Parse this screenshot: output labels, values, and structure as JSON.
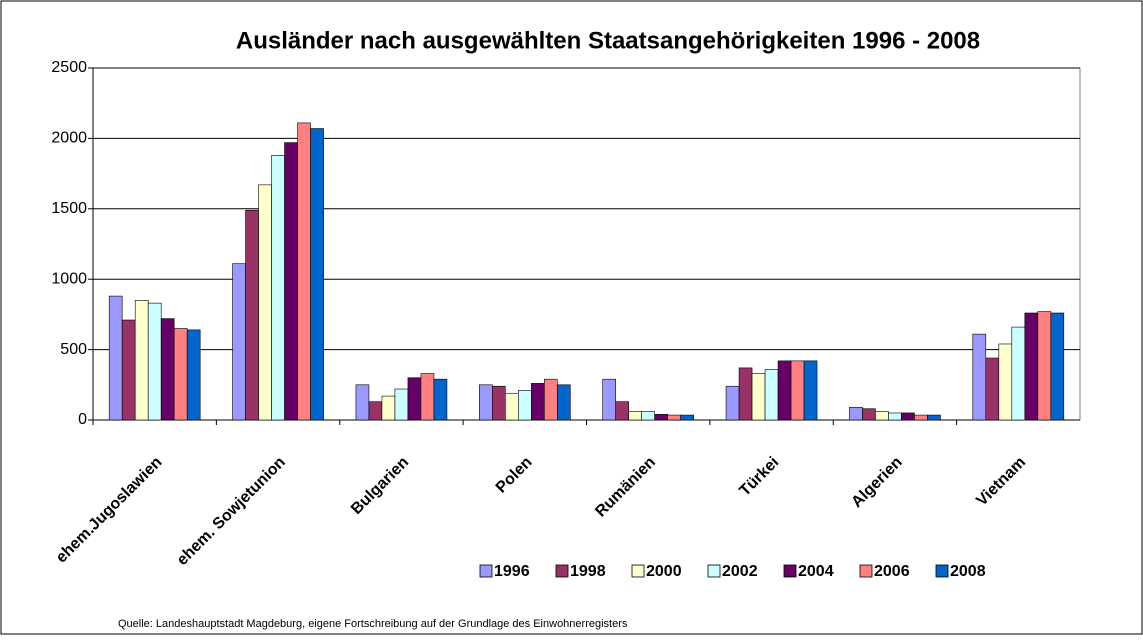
{
  "chart_data": {
    "type": "bar",
    "title": "Ausländer nach ausgewählten Staatsangehörigkeiten 1996 - 2008",
    "source": "Quelle: Landeshauptstadt Magdeburg, eigene Fortschreibung auf der Grundlage des Einwohnerregisters",
    "categories": [
      "ehem.Jugoslawien",
      "ehem. Sowjetunion",
      "Bulgarien",
      "Polen",
      "Rumänien",
      "Türkei",
      "Algerien",
      "Vietnam"
    ],
    "series": [
      {
        "name": "1996",
        "color": "#9999ff",
        "values": [
          880,
          1110,
          250,
          250,
          290,
          240,
          90,
          610
        ]
      },
      {
        "name": "1998",
        "color": "#993366",
        "values": [
          710,
          1490,
          130,
          240,
          130,
          370,
          80,
          440
        ]
      },
      {
        "name": "2000",
        "color": "#ffffcc",
        "values": [
          850,
          1670,
          170,
          190,
          60,
          330,
          60,
          540
        ]
      },
      {
        "name": "2002",
        "color": "#ccffff",
        "values": [
          830,
          1880,
          220,
          210,
          60,
          360,
          50,
          660
        ]
      },
      {
        "name": "2004",
        "color": "#660066",
        "values": [
          720,
          1970,
          300,
          260,
          40,
          420,
          50,
          760
        ]
      },
      {
        "name": "2006",
        "color": "#ff8080",
        "values": [
          650,
          2110,
          330,
          290,
          35,
          420,
          35,
          770
        ]
      },
      {
        "name": "2008",
        "color": "#0066cc",
        "values": [
          640,
          2070,
          290,
          250,
          35,
          420,
          35,
          760
        ]
      }
    ],
    "ylim": [
      0,
      2500
    ],
    "yticks": [
      0,
      500,
      1000,
      1500,
      2000,
      2500
    ],
    "grid": true,
    "legend": "bottom"
  }
}
